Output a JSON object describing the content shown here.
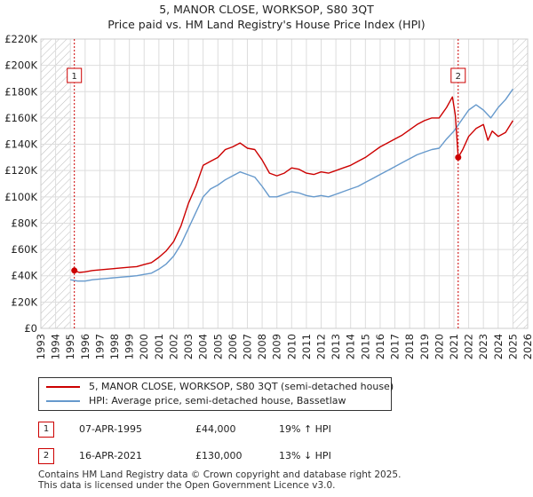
{
  "chart_data": {
    "type": "line",
    "title": "5, MANOR CLOSE, WORKSOP, S80 3QT",
    "subtitle": "Price paid vs. HM Land Registry's House Price Index (HPI)",
    "xlabel": "",
    "ylabel": "",
    "xlim": [
      1993,
      2026
    ],
    "ylim": [
      0,
      220000
    ],
    "grid": true,
    "y_ticks": [
      0,
      20000,
      40000,
      60000,
      80000,
      100000,
      120000,
      140000,
      160000,
      180000,
      200000,
      220000
    ],
    "y_tick_labels": [
      "£0",
      "£20K",
      "£40K",
      "£60K",
      "£80K",
      "£100K",
      "£120K",
      "£140K",
      "£160K",
      "£180K",
      "£200K",
      "£220K"
    ],
    "x_ticks": [
      1993,
      1994,
      1995,
      1996,
      1997,
      1998,
      1999,
      2000,
      2001,
      2002,
      2003,
      2004,
      2005,
      2006,
      2007,
      2008,
      2009,
      2010,
      2011,
      2012,
      2013,
      2014,
      2015,
      2016,
      2017,
      2018,
      2019,
      2020,
      2021,
      2022,
      2023,
      2024,
      2025,
      2026
    ],
    "x_tick_labels": [
      "1993",
      "1994",
      "1995",
      "1996",
      "1997",
      "1998",
      "1999",
      "2000",
      "2001",
      "2002",
      "2003",
      "2004",
      "2005",
      "2006",
      "2007",
      "2008",
      "2009",
      "2010",
      "2011",
      "2012",
      "2013",
      "2014",
      "2015",
      "2016",
      "2017",
      "2018",
      "2019",
      "2020",
      "2021",
      "2022",
      "2023",
      "2024",
      "2025",
      "2026"
    ],
    "hatched_ranges": [
      [
        1993,
        1995.0
      ],
      [
        2025.0,
        2026
      ]
    ],
    "series": [
      {
        "name": "5, MANOR CLOSE, WORKSOP, S80 3QT (semi-detached house)",
        "color": "#cc0000",
        "x": [
          1995.27,
          1995.6,
          1996.0,
          1996.5,
          1997.0,
          1997.5,
          1998.0,
          1998.5,
          1999.0,
          1999.5,
          2000.0,
          2000.5,
          2001.0,
          2001.5,
          2002.0,
          2002.5,
          2003.0,
          2003.5,
          2004.0,
          2004.5,
          2005.0,
          2005.5,
          2006.0,
          2006.5,
          2007.0,
          2007.5,
          2008.0,
          2008.5,
          2009.0,
          2009.5,
          2010.0,
          2010.5,
          2011.0,
          2011.5,
          2012.0,
          2012.5,
          2013.0,
          2013.5,
          2014.0,
          2014.5,
          2015.0,
          2015.5,
          2016.0,
          2016.5,
          2017.0,
          2017.5,
          2018.0,
          2018.5,
          2019.0,
          2019.5,
          2020.0,
          2020.5,
          2020.9,
          2021.1,
          2021.29,
          2021.6,
          2022.0,
          2022.5,
          2023.0,
          2023.3,
          2023.6,
          2024.0,
          2024.5,
          2025.0
        ],
        "values": [
          44000,
          42500,
          43000,
          44000,
          44500,
          45000,
          45500,
          46000,
          46500,
          47000,
          48500,
          50000,
          54000,
          59000,
          66000,
          78000,
          95000,
          108000,
          124000,
          127000,
          130000,
          136000,
          138000,
          141000,
          137000,
          136000,
          128000,
          118000,
          116000,
          118000,
          122000,
          121000,
          118000,
          117000,
          119000,
          118000,
          120000,
          122000,
          124000,
          127000,
          130000,
          134000,
          138000,
          141000,
          144000,
          147000,
          151000,
          155000,
          158000,
          160000,
          160000,
          168000,
          176000,
          162000,
          130000,
          136000,
          146000,
          152000,
          155000,
          143000,
          150000,
          146000,
          149000,
          158000
        ]
      },
      {
        "name": "HPI: Average price, semi-detached house, Bassetlaw",
        "color": "#6699cc",
        "x": [
          1995.0,
          1995.5,
          1996.0,
          1996.5,
          1997.0,
          1997.5,
          1998.0,
          1998.5,
          1999.0,
          1999.5,
          2000.0,
          2000.5,
          2001.0,
          2001.5,
          2002.0,
          2002.5,
          2003.0,
          2003.5,
          2004.0,
          2004.5,
          2005.0,
          2005.5,
          2006.0,
          2006.5,
          2007.0,
          2007.5,
          2008.0,
          2008.5,
          2009.0,
          2009.5,
          2010.0,
          2010.5,
          2011.0,
          2011.5,
          2012.0,
          2012.5,
          2013.0,
          2013.5,
          2014.0,
          2014.5,
          2015.0,
          2015.5,
          2016.0,
          2016.5,
          2017.0,
          2017.5,
          2018.0,
          2018.5,
          2019.0,
          2019.5,
          2020.0,
          2020.5,
          2021.0,
          2021.5,
          2022.0,
          2022.5,
          2023.0,
          2023.5,
          2024.0,
          2024.5,
          2025.0
        ],
        "values": [
          37000,
          36000,
          36000,
          37000,
          37500,
          38000,
          38500,
          39000,
          39500,
          40000,
          41000,
          42000,
          45000,
          49000,
          55000,
          64000,
          76000,
          88000,
          100000,
          106000,
          109000,
          113000,
          116000,
          119000,
          117000,
          115000,
          108000,
          100000,
          100000,
          102000,
          104000,
          103000,
          101000,
          100000,
          101000,
          100000,
          102000,
          104000,
          106000,
          108000,
          111000,
          114000,
          117000,
          120000,
          123000,
          126000,
          129000,
          132000,
          134000,
          136000,
          137000,
          144000,
          150000,
          158000,
          166000,
          170000,
          166000,
          160000,
          168000,
          174000,
          182000
        ]
      }
    ],
    "markers": [
      {
        "label": "1",
        "x": 1995.27,
        "y": 44000
      },
      {
        "label": "2",
        "x": 2021.29,
        "y": 130000
      }
    ]
  },
  "legend": {
    "line1": "5, MANOR CLOSE, WORKSOP, S80 3QT (semi-detached house)",
    "line2": "HPI: Average price, semi-detached house, Bassetlaw"
  },
  "transactions": [
    {
      "num": "1",
      "date": "07-APR-1995",
      "price": "£44,000",
      "hpi": "19% ↑ HPI"
    },
    {
      "num": "2",
      "date": "16-APR-2021",
      "price": "£130,000",
      "hpi": "13% ↓ HPI"
    }
  ],
  "footer": {
    "line1": "Contains HM Land Registry data © Crown copyright and database right 2025.",
    "line2": "This data is licensed under the Open Government Licence v3.0."
  },
  "colors": {
    "red": "#cc0000",
    "blue": "#6699cc",
    "grid": "#dddddd",
    "plot_bg": "#ffffff"
  }
}
